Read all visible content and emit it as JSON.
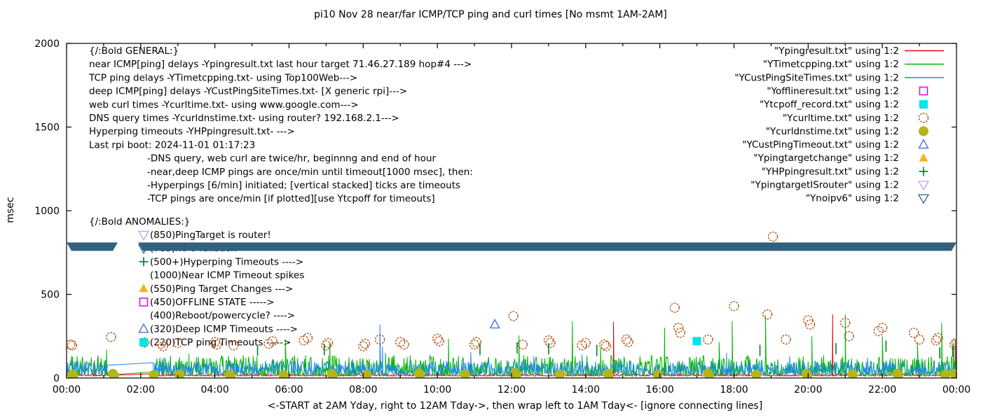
{
  "title": "pi10 Nov 28  near/far ICMP/TCP ping and curl times [No msmt 1AM-2AM]",
  "ylabel": "msec",
  "xlabel": "<-START at 2AM Yday, right to 12AM Tday->, then wrap left to 1AM Tday<- [ignore connecting lines]",
  "annotations": {
    "general": [
      "{/:Bold GENERAL:}",
      "near ICMP[ping] delays -Ypingresult.txt last hour target 71.46.27.189 hop#4 --->",
      "TCP ping delays -YTimetcpping.txt- using Top100Web--->",
      "deep ICMP[ping] delays -YCustPingSiteTimes.txt- [X generic rpi]--->",
      "web curl times -Ycurltime.txt- using www.google.com--->",
      "DNS query times -Ycurldnstime.txt- using router? 192.168.2.1--->",
      "Hyperping timeouts -YHPpingresult.txt- --->",
      "Last rpi boot: 2024-11-01 01:17:23"
    ],
    "general_indent": [
      "-DNS query, web curl are twice/hr, beginnng and end of hour",
      "-near,deep ICMP pings are once/min until timeout[1000 msec], then:",
      " -Hyperpings [6/min] initiated; [vertical stacked] ticks are timeouts",
      "-TCP pings are once/min [if plotted][use Ytcpoff for timeouts]"
    ],
    "anomalies_header": "{/:Bold ANOMALIES:}",
    "anomalies": [
      {
        "marker": "triangle-down-open",
        "color": "#c79bf2",
        "label": "(850)PingTarget is router!"
      },
      {
        "marker": "triangle-down-open",
        "color": "#33617d",
        "label": "(785)no 6 fallback"
      },
      {
        "marker": "plus",
        "color": "#007a33",
        "label": "(500+)Hyperping Timeouts ---->"
      },
      {
        "marker": "none",
        "color": "",
        "label": "(1000)Near ICMP Timeout spikes"
      },
      {
        "marker": "triangle-up-filled",
        "color": "#ffb020",
        "label": "(550)Ping Target Changes --->"
      },
      {
        "marker": "square-open",
        "color": "#e600e6",
        "label": "(450)OFFLINE STATE ----->"
      },
      {
        "marker": "none",
        "color": "",
        "label": "(400)Reboot/powercycle? ---->"
      },
      {
        "marker": "triangle-up-open",
        "color": "#4169e1",
        "label": "(320)Deep ICMP Timeouts ---->"
      },
      {
        "marker": "square-filled",
        "color": "#00e5e5",
        "label": "(220)TCP ping Timeouts ----->"
      }
    ]
  },
  "legend": [
    {
      "label": "\"Ypingresult.txt\" using 1:2",
      "sample": "line",
      "color": "#ee0000"
    },
    {
      "label": "\"YTimetcpping.txt\" using 1:2",
      "sample": "line",
      "color": "#00b400"
    },
    {
      "label": "\"YCustPingSiteTimes.txt\" using 1:2",
      "sample": "line",
      "color": "#1e87f0"
    },
    {
      "label": "\"Yofflineresult.txt\" using 1:2",
      "sample": "square-open",
      "color": "#e600e6"
    },
    {
      "label": "\"Ytcpoff_record.txt\" using 1:2",
      "sample": "square-filled",
      "color": "#00e5e5"
    },
    {
      "label": "\"Ycurltime.txt\" using 1:2",
      "sample": "circle-open",
      "color": "#b25212"
    },
    {
      "label": "\"Ycurldnstime.txt\" using 1:2",
      "sample": "circle-filled",
      "color": "#b4b41e"
    },
    {
      "label": "\"YCustPingTimeout.txt\" using 1:2",
      "sample": "triangle-up-open",
      "color": "#4169e1"
    },
    {
      "label": "\"Ypingtargetchange\" using 1:2",
      "sample": "triangle-up-filled",
      "color": "#ffb020"
    },
    {
      "label": "\"YHPpingresult.txt\" using 1:2",
      "sample": "plus",
      "color": "#007a33"
    },
    {
      "label": "\"YpingtargetISrouter\" using 1:2",
      "sample": "triangle-down-open",
      "color": "#c79bf2"
    },
    {
      "label": "\"Ynoipv6\" using 1:2",
      "sample": "triangle-down-open",
      "color": "#33617d"
    }
  ],
  "chart_data": {
    "type": "line",
    "xlim_hours": [
      0,
      24
    ],
    "ylim": [
      0,
      2000
    ],
    "y_ticks": [
      "0",
      "500",
      "1000",
      "1500",
      "2000"
    ],
    "y_tick_values": [
      0,
      500,
      1000,
      1500,
      2000
    ],
    "x_ticks": [
      "00:00",
      "02:00",
      "04:00",
      "06:00",
      "08:00",
      "10:00",
      "12:00",
      "14:00",
      "16:00",
      "18:00",
      "20:00",
      "22:00",
      "00:00"
    ],
    "x_tick_hours": [
      0,
      2,
      4,
      6,
      8,
      10,
      12,
      14,
      16,
      18,
      20,
      22,
      24
    ],
    "gap_hours": [
      1.1,
      2.32
    ],
    "series": [
      {
        "name": "Ypingresult.txt",
        "style": "line",
        "color": "#ee0000",
        "baseline": 12,
        "noise": 14,
        "power": 2.0,
        "spikes": [
          [
            0.75,
            105
          ],
          [
            8.13,
            100
          ],
          [
            14.75,
            335
          ],
          [
            20.66,
            380
          ],
          [
            23.97,
            225
          ]
        ]
      },
      {
        "name": "YTimetcpping.txt",
        "style": "line",
        "color": "#00b400",
        "baseline": 12,
        "noise": 125,
        "power": 2.0,
        "spikes": [
          [
            1.08,
            170
          ],
          [
            3.3,
            145
          ],
          [
            5.9,
            230
          ],
          [
            7.1,
            210
          ],
          [
            8.6,
            150
          ],
          [
            10.3,
            235
          ],
          [
            12.2,
            255
          ],
          [
            13.64,
            340
          ],
          [
            14.4,
            180
          ],
          [
            16.13,
            300
          ],
          [
            17.6,
            215
          ],
          [
            17.95,
            340
          ],
          [
            18.85,
            375
          ],
          [
            20.1,
            250
          ],
          [
            21.0,
            380
          ],
          [
            22.0,
            250
          ],
          [
            22.95,
            215
          ],
          [
            23.6,
            330
          ],
          [
            23.92,
            210
          ]
        ]
      },
      {
        "name": "YCustPingSiteTimes.txt",
        "style": "line",
        "color": "#1e87f0",
        "baseline": 20,
        "noise": 85,
        "power": 1.8,
        "spikes": [
          [
            2.6,
            120
          ],
          [
            8.45,
            320
          ],
          [
            8.52,
            190
          ],
          [
            10.9,
            155
          ],
          [
            12.6,
            130
          ],
          [
            13.9,
            140
          ],
          [
            17.8,
            150
          ],
          [
            19.5,
            130
          ],
          [
            21.6,
            120
          ]
        ]
      },
      {
        "name": "Yofflineresult.txt",
        "style": "points",
        "marker": "square-open",
        "color": "#e600e6",
        "points": []
      },
      {
        "name": "Ytcpoff_record.txt",
        "style": "points",
        "marker": "square-filled",
        "color": "#00e5e5",
        "points": [
          [
            17.0,
            220
          ]
        ]
      },
      {
        "name": "Ycurltime.txt",
        "style": "points",
        "marker": "circle-open",
        "color": "#b25212",
        "points": [
          [
            0.1,
            200
          ],
          [
            0.15,
            195
          ],
          [
            1.2,
            245
          ],
          [
            2.1,
            212
          ],
          [
            2.55,
            205
          ],
          [
            2.6,
            190
          ],
          [
            3.0,
            210
          ],
          [
            4.0,
            215
          ],
          [
            4.05,
            200
          ],
          [
            4.5,
            195
          ],
          [
            5.45,
            205
          ],
          [
            5.55,
            220
          ],
          [
            6.4,
            225
          ],
          [
            6.5,
            240
          ],
          [
            7.0,
            195
          ],
          [
            7.05,
            210
          ],
          [
            8.0,
            190
          ],
          [
            8.05,
            205
          ],
          [
            8.45,
            230
          ],
          [
            9.0,
            215
          ],
          [
            9.1,
            200
          ],
          [
            10.0,
            235
          ],
          [
            10.05,
            220
          ],
          [
            11.0,
            200
          ],
          [
            11.05,
            215
          ],
          [
            12.05,
            370
          ],
          [
            12.3,
            200
          ],
          [
            13.0,
            225
          ],
          [
            13.05,
            210
          ],
          [
            13.9,
            195
          ],
          [
            14.0,
            210
          ],
          [
            14.5,
            200
          ],
          [
            14.55,
            190
          ],
          [
            15.1,
            230
          ],
          [
            15.15,
            215
          ],
          [
            16.4,
            420
          ],
          [
            16.5,
            300
          ],
          [
            16.55,
            270
          ],
          [
            17.3,
            230
          ],
          [
            18.0,
            430
          ],
          [
            18.9,
            380
          ],
          [
            19.05,
            845
          ],
          [
            19.4,
            230
          ],
          [
            20.0,
            345
          ],
          [
            20.05,
            320
          ],
          [
            21.0,
            330
          ],
          [
            21.1,
            250
          ],
          [
            21.9,
            280
          ],
          [
            22.0,
            300
          ],
          [
            22.85,
            270
          ],
          [
            23.0,
            230
          ],
          [
            23.45,
            225
          ],
          [
            23.5,
            240
          ],
          [
            23.95,
            200
          ],
          [
            24.0,
            210
          ]
        ]
      },
      {
        "name": "Ycurldnstime.txt",
        "style": "points",
        "marker": "circle-filled",
        "color": "#b4b41e",
        "points": [
          [
            0.15,
            20
          ],
          [
            0.18,
            12
          ],
          [
            1.25,
            25
          ],
          [
            1.28,
            15
          ],
          [
            2.35,
            18
          ],
          [
            3.05,
            22
          ],
          [
            4.4,
            20
          ],
          [
            4.43,
            12
          ],
          [
            5.85,
            18
          ],
          [
            7.15,
            25
          ],
          [
            7.18,
            14
          ],
          [
            8.1,
            20
          ],
          [
            9.5,
            28
          ],
          [
            9.53,
            16
          ],
          [
            10.75,
            22
          ],
          [
            12.1,
            30
          ],
          [
            12.13,
            18
          ],
          [
            13.3,
            20
          ],
          [
            14.6,
            25
          ],
          [
            14.63,
            14
          ],
          [
            15.95,
            22
          ],
          [
            17.3,
            28
          ],
          [
            17.33,
            16
          ],
          [
            18.6,
            20
          ],
          [
            19.95,
            25
          ],
          [
            19.98,
            15
          ],
          [
            21.2,
            22
          ],
          [
            22.4,
            26
          ],
          [
            22.43,
            14
          ],
          [
            23.7,
            20
          ],
          [
            23.95,
            25
          ]
        ]
      },
      {
        "name": "YCustPingTimeout.txt",
        "style": "points",
        "marker": "triangle-up-open",
        "color": "#4169e1",
        "points": [
          [
            11.55,
            320
          ]
        ]
      },
      {
        "name": "Ypingtargetchange",
        "style": "points",
        "marker": "triangle-up-filled",
        "color": "#ffb020",
        "points": []
      },
      {
        "name": "YHPpingresult.txt",
        "style": "points",
        "marker": "tick",
        "color": "#007a33",
        "points": [
          [
            5.15,
            165
          ],
          [
            6.95,
            170
          ],
          [
            11.15,
            170
          ],
          [
            12.15,
            180
          ],
          [
            13.0,
            175
          ],
          [
            14.3,
            165
          ],
          [
            18.7,
            165
          ],
          [
            20.75,
            175
          ],
          [
            22.1,
            190
          ],
          [
            23.55,
            150
          ],
          [
            23.9,
            160
          ]
        ]
      },
      {
        "name": "YpingtargetISrouter",
        "style": "points",
        "marker": "triangle-down-open",
        "color": "#c79bf2",
        "points": []
      },
      {
        "name": "Ynoipv6",
        "style": "band",
        "marker": "triangle-down-open",
        "color": "#33617d",
        "value": 785,
        "segments": [
          [
            0.0,
            1.38
          ],
          [
            1.93,
            24.0
          ]
        ]
      }
    ]
  }
}
